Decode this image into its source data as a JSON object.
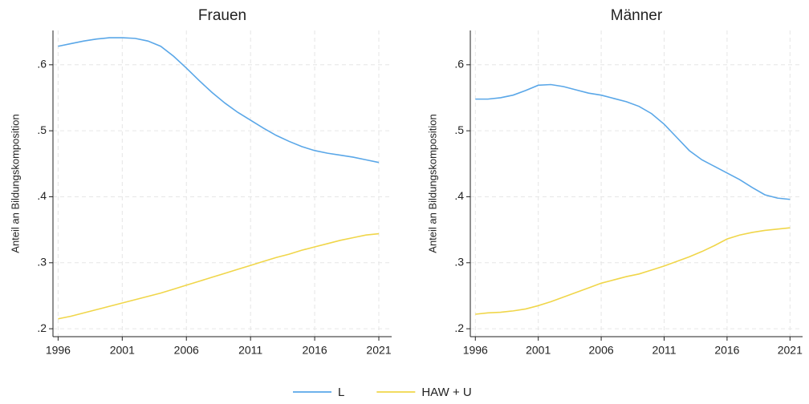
{
  "chart_data": [
    {
      "type": "line",
      "title": "Frauen",
      "y_label": "Anteil an Bildungskomposition",
      "x": [
        1996,
        1997,
        1998,
        1999,
        2000,
        2001,
        2002,
        2003,
        2004,
        2005,
        2006,
        2007,
        2008,
        2009,
        2010,
        2011,
        2012,
        2013,
        2014,
        2015,
        2016,
        2017,
        2018,
        2019,
        2020,
        2021
      ],
      "series": [
        {
          "name": "L",
          "color": "#5aa7e8",
          "values": [
            0.628,
            0.632,
            0.636,
            0.639,
            0.641,
            0.641,
            0.64,
            0.636,
            0.628,
            0.613,
            0.595,
            0.576,
            0.558,
            0.542,
            0.528,
            0.516,
            0.504,
            0.493,
            0.484,
            0.476,
            0.47,
            0.466,
            0.463,
            0.46,
            0.456,
            0.452
          ]
        },
        {
          "name": "HAW + U",
          "color": "#f0d64a",
          "values": [
            0.215,
            0.219,
            0.224,
            0.229,
            0.234,
            0.239,
            0.244,
            0.249,
            0.254,
            0.26,
            0.266,
            0.272,
            0.278,
            0.284,
            0.29,
            0.296,
            0.302,
            0.308,
            0.313,
            0.319,
            0.324,
            0.329,
            0.334,
            0.338,
            0.342,
            0.344
          ]
        }
      ],
      "xlim": [
        1995.6,
        2022
      ],
      "xticks": [
        1996,
        2001,
        2006,
        2011,
        2016,
        2021
      ],
      "ylim": [
        0.188,
        0.652
      ],
      "yticks": [
        {
          "value": 0.2,
          "label": ".2"
        },
        {
          "value": 0.3,
          "label": ".3"
        },
        {
          "value": 0.4,
          "label": ".4"
        },
        {
          "value": 0.5,
          "label": ".5"
        },
        {
          "value": 0.6,
          "label": ".6"
        }
      ],
      "grid": true
    },
    {
      "type": "line",
      "title": "Männer",
      "y_label": "Anteil an Bildungskomposition",
      "x": [
        1996,
        1997,
        1998,
        1999,
        2000,
        2001,
        2002,
        2003,
        2004,
        2005,
        2006,
        2007,
        2008,
        2009,
        2010,
        2011,
        2012,
        2013,
        2014,
        2015,
        2016,
        2017,
        2018,
        2019,
        2020,
        2021
      ],
      "series": [
        {
          "name": "L",
          "color": "#5aa7e8",
          "values": [
            0.548,
            0.548,
            0.55,
            0.554,
            0.561,
            0.569,
            0.57,
            0.567,
            0.562,
            0.557,
            0.554,
            0.549,
            0.544,
            0.537,
            0.526,
            0.51,
            0.49,
            0.47,
            0.456,
            0.446,
            0.436,
            0.426,
            0.414,
            0.403,
            0.398,
            0.396
          ]
        },
        {
          "name": "HAW + U",
          "color": "#f0d64a",
          "values": [
            0.222,
            0.224,
            0.225,
            0.227,
            0.23,
            0.235,
            0.241,
            0.248,
            0.255,
            0.262,
            0.269,
            0.274,
            0.279,
            0.283,
            0.289,
            0.295,
            0.302,
            0.309,
            0.317,
            0.326,
            0.336,
            0.342,
            0.346,
            0.349,
            0.351,
            0.353
          ]
        }
      ],
      "xlim": [
        1995.6,
        2022
      ],
      "xticks": [
        1996,
        2001,
        2006,
        2011,
        2016,
        2021
      ],
      "ylim": [
        0.188,
        0.652
      ],
      "yticks": [
        {
          "value": 0.2,
          "label": ".2"
        },
        {
          "value": 0.3,
          "label": ".3"
        },
        {
          "value": 0.4,
          "label": ".4"
        },
        {
          "value": 0.5,
          "label": ".5"
        },
        {
          "value": 0.6,
          "label": ".6"
        }
      ],
      "grid": true
    }
  ]
}
